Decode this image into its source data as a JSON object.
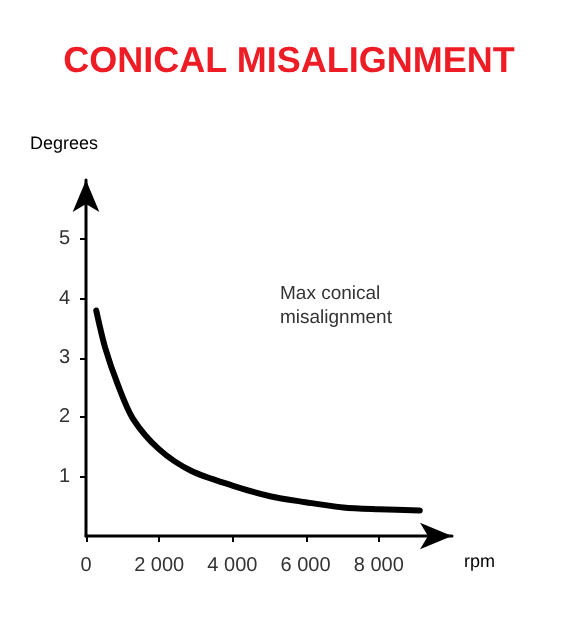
{
  "chart_data": {
    "type": "line",
    "title": "CONICAL MISALIGNMENT",
    "xlabel": "rpm",
    "ylabel": "Degrees",
    "annotations": [
      "Max conical\nmisalignment"
    ],
    "x": [
      280,
      530,
      870,
      1280,
      2000,
      2870,
      4000,
      5030,
      6000,
      7030,
      8000,
      9120
    ],
    "series": [
      {
        "color": "#000000",
        "values": [
          3.8,
          3.16,
          2.55,
          1.98,
          1.46,
          1.1,
          0.85,
          0.67,
          0.57,
          0.48,
          0.45,
          0.43
        ]
      }
    ],
    "xlim": [
      0,
      10000
    ],
    "ylim": [
      0,
      6
    ],
    "xticks": [
      0,
      {
        "value": 2000,
        "label": "2 000"
      },
      {
        "value": 4000,
        "label": "4 000"
      },
      {
        "value": 6000,
        "label": "6 000"
      },
      {
        "value": 8000,
        "label": "8 000"
      }
    ],
    "yticks": [
      1,
      2,
      3,
      4,
      5
    ],
    "grid": false,
    "marker": "none",
    "line_style": "solid"
  }
}
